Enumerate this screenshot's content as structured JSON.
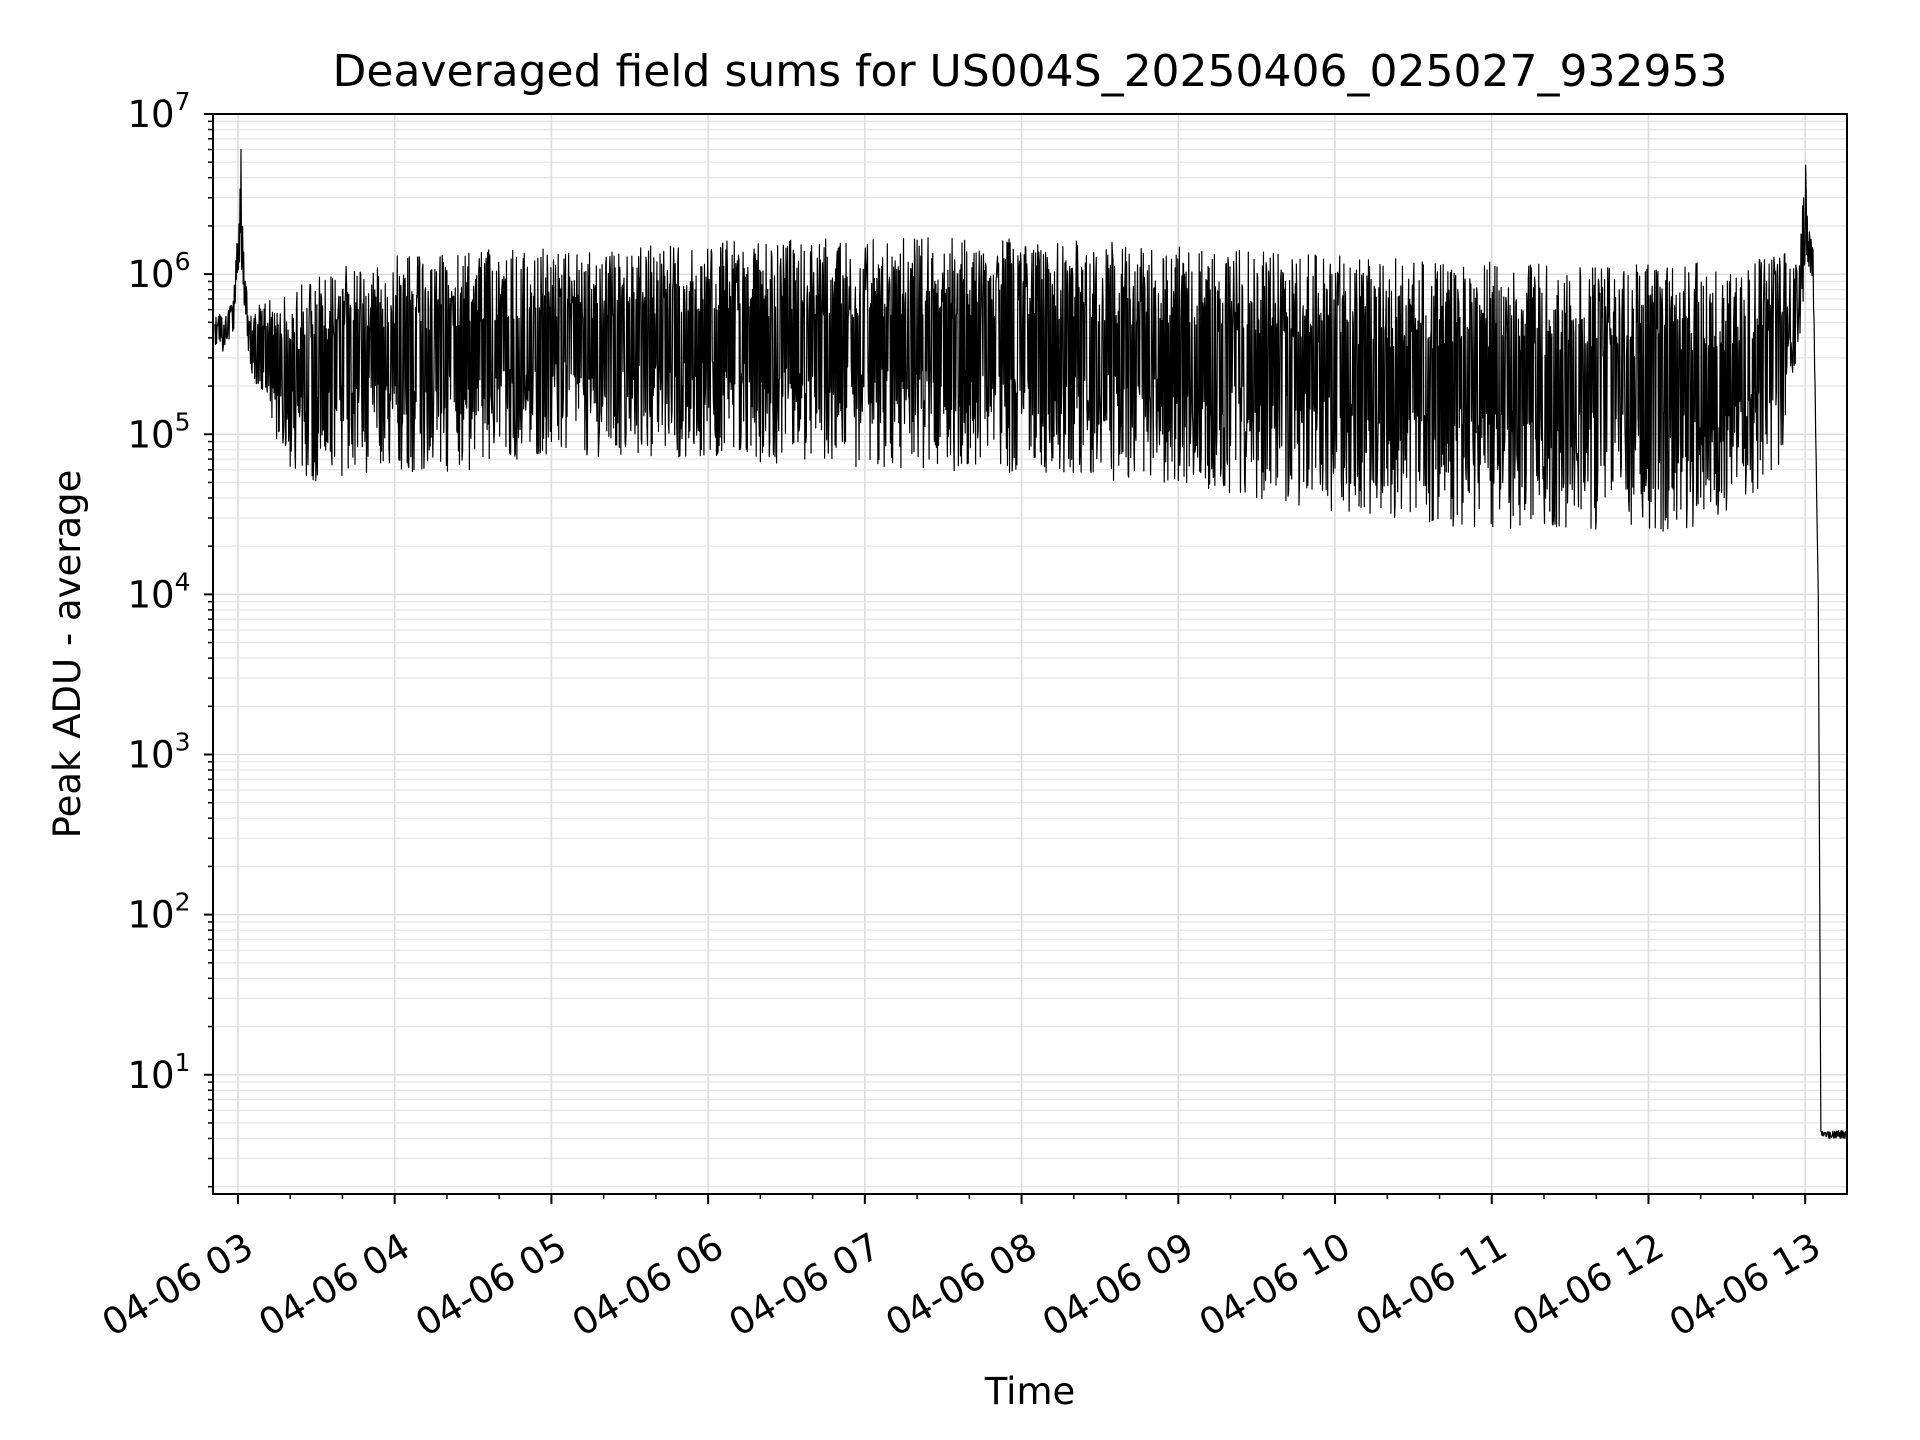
{
  "chart_data": {
    "type": "line",
    "title": "Deaveraged field sums for US004S_20250406_025027_932953",
    "xlabel": "Time",
    "ylabel": "Peak ADU - average",
    "yscale": "log",
    "ylim": [
      1.8,
      10000000
    ],
    "xlim": [
      "2025-04-06 02:50:27",
      "2025-04-06 13:16:00"
    ],
    "grid": "on (major and minor)",
    "x_tick_labels": [
      "04-06 03",
      "04-06 04",
      "04-06 05",
      "04-06 06",
      "04-06 07",
      "04-06 08",
      "04-06 09",
      "04-06 10",
      "04-06 11",
      "04-06 12",
      "04-06 13"
    ],
    "y_tick_labels": [
      {
        "base": "10",
        "exp": "1"
      },
      {
        "base": "10",
        "exp": "2"
      },
      {
        "base": "10",
        "exp": "3"
      },
      {
        "base": "10",
        "exp": "4"
      },
      {
        "base": "10",
        "exp": "5"
      },
      {
        "base": "10",
        "exp": "6"
      },
      {
        "base": "10",
        "exp": "7"
      }
    ],
    "series_color": "#000000",
    "series": [
      {
        "x": [
          "2025-04-06 02:51",
          "2025-04-06 02:55",
          "2025-04-06 02:58",
          "2025-04-06 03:00",
          "2025-04-06 03:01",
          "2025-04-06 03:02",
          "2025-04-06 03:04",
          "2025-04-06 03:10",
          "2025-04-06 03:15",
          "2025-04-06 03:20",
          "2025-04-06 03:30",
          "2025-04-06 03:40",
          "2025-04-06 04:00",
          "2025-04-06 04:10",
          "2025-04-06 04:30",
          "2025-04-06 05:00",
          "2025-04-06 05:30",
          "2025-04-06 06:00",
          "2025-04-06 06:30",
          "2025-04-06 07:00",
          "2025-04-06 07:30",
          "2025-04-06 08:00",
          "2025-04-06 08:30",
          "2025-04-06 09:00",
          "2025-04-06 09:30",
          "2025-04-06 10:00",
          "2025-04-06 10:30",
          "2025-04-06 11:00",
          "2025-04-06 11:30",
          "2025-04-06 12:00",
          "2025-04-06 12:30",
          "2025-04-06 12:50",
          "2025-04-06 12:58",
          "2025-04-06 13:00",
          "2025-04-06 13:01",
          "2025-04-06 13:03",
          "2025-04-06 13:05",
          "2025-04-06 13:06",
          "2025-04-06 13:16"
        ],
        "low": [
          300000,
          320000,
          380000,
          900000,
          1200000,
          800000,
          260000,
          150000,
          90000,
          60000,
          50000,
          55000,
          60000,
          55000,
          60000,
          75000,
          70000,
          72000,
          65000,
          60000,
          58000,
          55000,
          50000,
          48000,
          40000,
          32000,
          28000,
          25000,
          26000,
          24000,
          28000,
          60000,
          400000,
          700000,
          1100000,
          900000,
          10000,
          4,
          4
        ],
        "high": [
          550000,
          600000,
          700000,
          1900000,
          6000000,
          1700000,
          600000,
          700000,
          700000,
          800000,
          1000000,
          1200000,
          1300000,
          1300000,
          1400000,
          1500000,
          1550000,
          1600000,
          1650000,
          1700000,
          1700000,
          1650000,
          1600000,
          1500000,
          1400000,
          1300000,
          1250000,
          1200000,
          1150000,
          1150000,
          1200000,
          1300000,
          1500000,
          4800000,
          2000000,
          1500000,
          10000,
          4.5,
          4.5
        ]
      }
    ]
  }
}
